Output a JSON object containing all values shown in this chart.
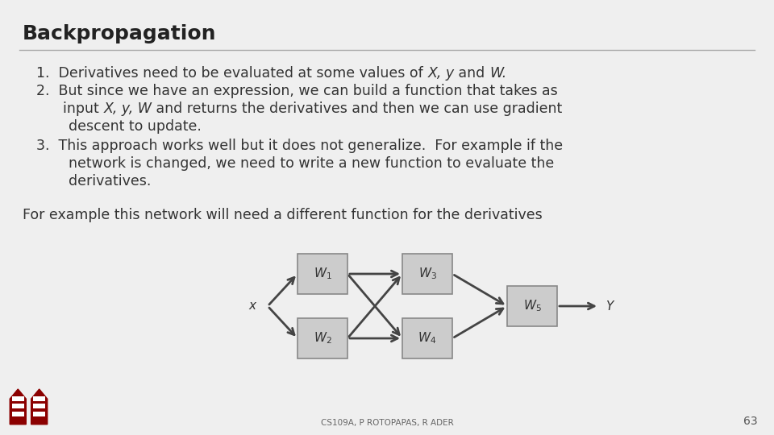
{
  "title": "Backpropagation",
  "background_color": "#efefef",
  "title_color": "#222222",
  "title_fontsize": 18,
  "body_fontsize": 12.5,
  "footer": "CS109A, P ROTOPAPAS, R ADER",
  "page_num": "63",
  "box_color": "#cccccc",
  "box_edge": "#888888",
  "arrow_color": "#444444",
  "text_color": "#333333"
}
